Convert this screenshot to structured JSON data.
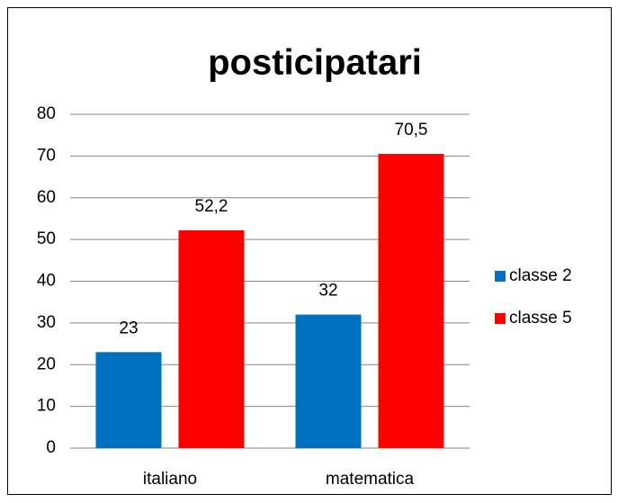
{
  "chart_data": {
    "type": "bar",
    "title": "posticipatari",
    "categories": [
      "italiano",
      "matematica"
    ],
    "series": [
      {
        "name": "classe 2",
        "color": "#0070c0",
        "values": [
          23,
          32
        ],
        "value_labels": [
          "23",
          "32"
        ]
      },
      {
        "name": "classe 5",
        "color": "#ff0000",
        "values": [
          52.2,
          70.5
        ],
        "value_labels": [
          "52,2",
          "70,5"
        ]
      }
    ],
    "ylim": [
      0,
      80
    ],
    "yticks": [
      0,
      10,
      20,
      30,
      40,
      50,
      60,
      70,
      80
    ],
    "grid": true,
    "legend": "right"
  }
}
